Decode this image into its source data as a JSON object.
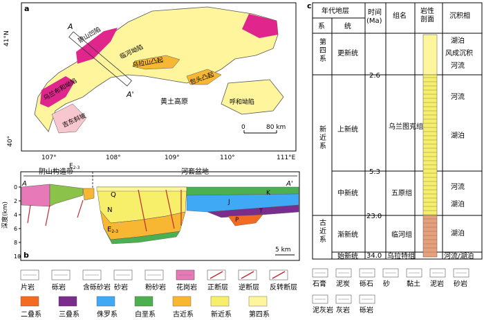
{
  "panel_a": {
    "label": "a",
    "lat_labels": [
      "41°N",
      "40°"
    ],
    "lon_labels": [
      "107°",
      "108°",
      "109°",
      "110°",
      "111°E"
    ],
    "section_start": "A",
    "section_end": "A'",
    "places": {
      "basin1": "乌兰布和坳陷",
      "basin2": "临河坳陷",
      "uplift": "乌拉山凸起",
      "basin3": "呼和坳陷",
      "uplift2": "包头凸起",
      "slope": "吉东斜坡",
      "loess": "黄土高原",
      "hills": "狼山凹陷"
    },
    "scale_zero": "0",
    "scale_label": "80 km"
  },
  "panel_b": {
    "label": "b",
    "left_belt": "阴山构造带",
    "right_basin": "河套盆地",
    "start": "A",
    "end": "A'",
    "e23_top_left": "E",
    "e23_sub": "2-3",
    "e23_top": "E",
    "ylabel": "深度(km)",
    "yticks": [
      "0",
      "2",
      "4",
      "6",
      "8",
      "10"
    ],
    "units": {
      "Q": "Q",
      "N": "N",
      "E": "E",
      "E_sub": "2-3",
      "J": "J",
      "K": "K",
      "T": "T",
      "P": "P"
    },
    "scale": "5 km"
  },
  "panel_c": {
    "label": "c",
    "headers": {
      "strat": "年代地层",
      "system": "系",
      "series": "统",
      "time": "时间\n(Ma)",
      "formation": "组名",
      "lith": "岩性\n剖面",
      "facies": "沉积相"
    },
    "rows": [
      {
        "system": "第四系",
        "series": "更新统",
        "formation": "",
        "facies": [
          "湖泊",
          "风成沉积",
          "河流"
        ]
      },
      {
        "system": "新近系",
        "series": "上新统",
        "formation": "乌兰图克组",
        "facies": [
          "河流",
          "湖泊"
        ]
      },
      {
        "system": "",
        "series": "中新统",
        "formation": "五原组",
        "facies": [
          "河流",
          "湖泊"
        ]
      },
      {
        "system": "古近系",
        "series": "渐新统",
        "formation": "临河组",
        "facies": [
          "湖泊"
        ]
      },
      {
        "system": "",
        "series": "始新统",
        "formation": "乌拉特组",
        "facies": [
          "河流/湖泊"
        ]
      }
    ],
    "times": [
      "2.6",
      "5.3",
      "23.0",
      "34.0"
    ]
  },
  "legend_rocks": [
    "片岩",
    "砾岩",
    "含砾砂岩",
    "砂岩",
    "粉砂岩",
    "花岗岩",
    "正断层",
    "逆断层",
    "反转断层"
  ],
  "legend_systems": [
    "二叠系",
    "三叠系",
    "侏罗系",
    "白垩系",
    "古近系",
    "新近系",
    "第四系"
  ],
  "legend_lith": [
    "石膏",
    "泥炭",
    "砾石",
    "砂",
    "黏土",
    "泥岩",
    "砂岩",
    "泥灰岩",
    "灰岩",
    "砾岩"
  ],
  "colors": {
    "permian": "#f26b21",
    "triassic": "#7b2d8e",
    "jurassic": "#3fa9f5",
    "cretaceous": "#4caf50",
    "paleogene": "#f7b733",
    "neogene": "#f7ef6a",
    "quaternary": "#fff59d",
    "granite": "#e879b9",
    "basin_pink": "#e0258c"
  }
}
